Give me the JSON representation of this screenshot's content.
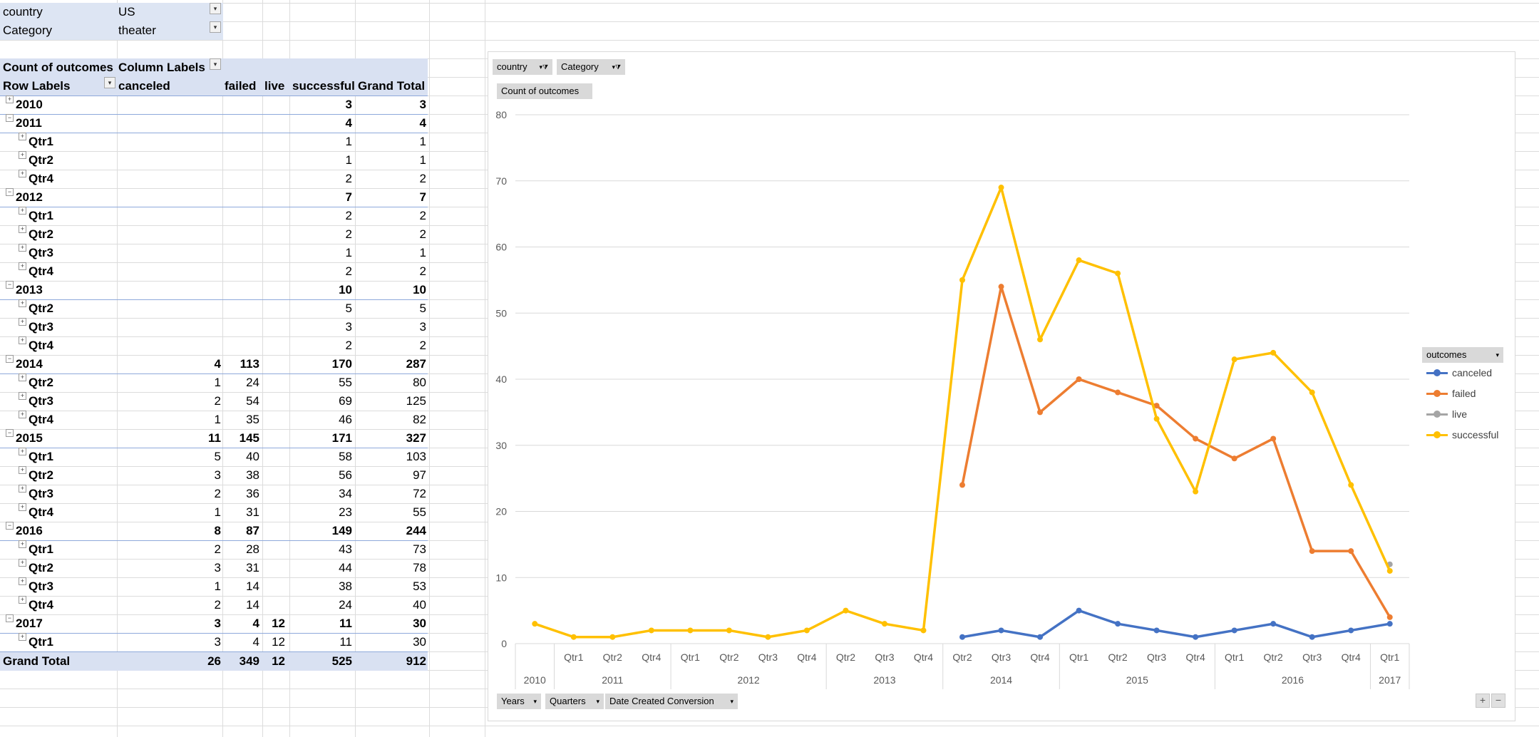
{
  "filters": {
    "country": {
      "label": "country",
      "value": "US"
    },
    "category": {
      "label": "Category",
      "value": "theater"
    }
  },
  "pivot": {
    "header1": {
      "measure": "Count of outcomes",
      "column_labels": "Column Labels"
    },
    "header2": {
      "row_labels": "Row Labels",
      "canceled": "canceled",
      "failed": "failed",
      "live": "live",
      "successful": "successful",
      "grand_total": "Grand Total"
    },
    "rows": [
      {
        "level": "year",
        "label": "2010",
        "expander": "+",
        "canceled": "",
        "failed": "",
        "live": "",
        "successful": "3",
        "total": "3"
      },
      {
        "level": "year",
        "label": "2011",
        "expander": "−",
        "canceled": "",
        "failed": "",
        "live": "",
        "successful": "4",
        "total": "4"
      },
      {
        "level": "qtr",
        "label": "Qtr1",
        "expander": "+",
        "canceled": "",
        "failed": "",
        "live": "",
        "successful": "1",
        "total": "1"
      },
      {
        "level": "qtr",
        "label": "Qtr2",
        "expander": "+",
        "canceled": "",
        "failed": "",
        "live": "",
        "successful": "1",
        "total": "1"
      },
      {
        "level": "qtr",
        "label": "Qtr4",
        "expander": "+",
        "canceled": "",
        "failed": "",
        "live": "",
        "successful": "2",
        "total": "2"
      },
      {
        "level": "year",
        "label": "2012",
        "expander": "−",
        "canceled": "",
        "failed": "",
        "live": "",
        "successful": "7",
        "total": "7"
      },
      {
        "level": "qtr",
        "label": "Qtr1",
        "expander": "+",
        "canceled": "",
        "failed": "",
        "live": "",
        "successful": "2",
        "total": "2"
      },
      {
        "level": "qtr",
        "label": "Qtr2",
        "expander": "+",
        "canceled": "",
        "failed": "",
        "live": "",
        "successful": "2",
        "total": "2"
      },
      {
        "level": "qtr",
        "label": "Qtr3",
        "expander": "+",
        "canceled": "",
        "failed": "",
        "live": "",
        "successful": "1",
        "total": "1"
      },
      {
        "level": "qtr",
        "label": "Qtr4",
        "expander": "+",
        "canceled": "",
        "failed": "",
        "live": "",
        "successful": "2",
        "total": "2"
      },
      {
        "level": "year",
        "label": "2013",
        "expander": "−",
        "canceled": "",
        "failed": "",
        "live": "",
        "successful": "10",
        "total": "10"
      },
      {
        "level": "qtr",
        "label": "Qtr2",
        "expander": "+",
        "canceled": "",
        "failed": "",
        "live": "",
        "successful": "5",
        "total": "5"
      },
      {
        "level": "qtr",
        "label": "Qtr3",
        "expander": "+",
        "canceled": "",
        "failed": "",
        "live": "",
        "successful": "3",
        "total": "3"
      },
      {
        "level": "qtr",
        "label": "Qtr4",
        "expander": "+",
        "canceled": "",
        "failed": "",
        "live": "",
        "successful": "2",
        "total": "2"
      },
      {
        "level": "year",
        "label": "2014",
        "expander": "−",
        "canceled": "4",
        "failed": "113",
        "live": "",
        "successful": "170",
        "total": "287"
      },
      {
        "level": "qtr",
        "label": "Qtr2",
        "expander": "+",
        "canceled": "1",
        "failed": "24",
        "live": "",
        "successful": "55",
        "total": "80"
      },
      {
        "level": "qtr",
        "label": "Qtr3",
        "expander": "+",
        "canceled": "2",
        "failed": "54",
        "live": "",
        "successful": "69",
        "total": "125"
      },
      {
        "level": "qtr",
        "label": "Qtr4",
        "expander": "+",
        "canceled": "1",
        "failed": "35",
        "live": "",
        "successful": "46",
        "total": "82"
      },
      {
        "level": "year",
        "label": "2015",
        "expander": "−",
        "canceled": "11",
        "failed": "145",
        "live": "",
        "successful": "171",
        "total": "327"
      },
      {
        "level": "qtr",
        "label": "Qtr1",
        "expander": "+",
        "canceled": "5",
        "failed": "40",
        "live": "",
        "successful": "58",
        "total": "103"
      },
      {
        "level": "qtr",
        "label": "Qtr2",
        "expander": "+",
        "canceled": "3",
        "failed": "38",
        "live": "",
        "successful": "56",
        "total": "97"
      },
      {
        "level": "qtr",
        "label": "Qtr3",
        "expander": "+",
        "canceled": "2",
        "failed": "36",
        "live": "",
        "successful": "34",
        "total": "72"
      },
      {
        "level": "qtr",
        "label": "Qtr4",
        "expander": "+",
        "canceled": "1",
        "failed": "31",
        "live": "",
        "successful": "23",
        "total": "55"
      },
      {
        "level": "year",
        "label": "2016",
        "expander": "−",
        "canceled": "8",
        "failed": "87",
        "live": "",
        "successful": "149",
        "total": "244"
      },
      {
        "level": "qtr",
        "label": "Qtr1",
        "expander": "+",
        "canceled": "2",
        "failed": "28",
        "live": "",
        "successful": "43",
        "total": "73"
      },
      {
        "level": "qtr",
        "label": "Qtr2",
        "expander": "+",
        "canceled": "3",
        "failed": "31",
        "live": "",
        "successful": "44",
        "total": "78"
      },
      {
        "level": "qtr",
        "label": "Qtr3",
        "expander": "+",
        "canceled": "1",
        "failed": "14",
        "live": "",
        "successful": "38",
        "total": "53"
      },
      {
        "level": "qtr",
        "label": "Qtr4",
        "expander": "+",
        "canceled": "2",
        "failed": "14",
        "live": "",
        "successful": "24",
        "total": "40"
      },
      {
        "level": "year",
        "label": "2017",
        "expander": "−",
        "canceled": "3",
        "failed": "4",
        "live": "12",
        "successful": "11",
        "total": "30"
      },
      {
        "level": "qtr",
        "label": "Qtr1",
        "expander": "+",
        "canceled": "3",
        "failed": "4",
        "live": "12",
        "successful": "11",
        "total": "30"
      }
    ],
    "grand_total": {
      "label": "Grand Total",
      "canceled": "26",
      "failed": "349",
      "live": "12",
      "successful": "525",
      "total": "912"
    }
  },
  "chart_buttons": {
    "country": "country",
    "category": "Category",
    "measure": "Count of outcomes",
    "years": "Years",
    "quarters": "Quarters",
    "date_field": "Date Created Conversion",
    "legend_title": "outcomes",
    "zoom_in": "+",
    "zoom_out": "−"
  },
  "chart_data": {
    "type": "line",
    "ylim": [
      0,
      80
    ],
    "yticks": [
      0,
      10,
      20,
      30,
      40,
      50,
      60,
      70,
      80
    ],
    "categories": [
      {
        "year": "2010",
        "qtr": ""
      },
      {
        "year": "2011",
        "qtr": "Qtr1"
      },
      {
        "year": "2011",
        "qtr": "Qtr2"
      },
      {
        "year": "2011",
        "qtr": "Qtr4"
      },
      {
        "year": "2012",
        "qtr": "Qtr1"
      },
      {
        "year": "2012",
        "qtr": "Qtr2"
      },
      {
        "year": "2012",
        "qtr": "Qtr3"
      },
      {
        "year": "2012",
        "qtr": "Qtr4"
      },
      {
        "year": "2013",
        "qtr": "Qtr2"
      },
      {
        "year": "2013",
        "qtr": "Qtr3"
      },
      {
        "year": "2013",
        "qtr": "Qtr4"
      },
      {
        "year": "2014",
        "qtr": "Qtr2"
      },
      {
        "year": "2014",
        "qtr": "Qtr3"
      },
      {
        "year": "2014",
        "qtr": "Qtr4"
      },
      {
        "year": "2015",
        "qtr": "Qtr1"
      },
      {
        "year": "2015",
        "qtr": "Qtr2"
      },
      {
        "year": "2015",
        "qtr": "Qtr3"
      },
      {
        "year": "2015",
        "qtr": "Qtr4"
      },
      {
        "year": "2016",
        "qtr": "Qtr1"
      },
      {
        "year": "2016",
        "qtr": "Qtr2"
      },
      {
        "year": "2016",
        "qtr": "Qtr3"
      },
      {
        "year": "2016",
        "qtr": "Qtr4"
      },
      {
        "year": "2017",
        "qtr": "Qtr1"
      }
    ],
    "year_groups": [
      {
        "year": "2010",
        "count": 1
      },
      {
        "year": "2011",
        "count": 3
      },
      {
        "year": "2012",
        "count": 4
      },
      {
        "year": "2013",
        "count": 3
      },
      {
        "year": "2014",
        "count": 3
      },
      {
        "year": "2015",
        "count": 4
      },
      {
        "year": "2016",
        "count": 4
      },
      {
        "year": "2017",
        "count": 1
      }
    ],
    "series": [
      {
        "name": "canceled",
        "color": "#4472c4",
        "values": [
          null,
          null,
          null,
          null,
          null,
          null,
          null,
          null,
          null,
          null,
          null,
          1,
          2,
          1,
          5,
          3,
          2,
          1,
          2,
          3,
          1,
          2,
          3
        ]
      },
      {
        "name": "failed",
        "color": "#ed7d31",
        "values": [
          null,
          null,
          null,
          null,
          null,
          null,
          null,
          null,
          null,
          null,
          null,
          24,
          54,
          35,
          40,
          38,
          36,
          31,
          28,
          31,
          14,
          14,
          4
        ]
      },
      {
        "name": "live",
        "color": "#a5a5a5",
        "values": [
          null,
          null,
          null,
          null,
          null,
          null,
          null,
          null,
          null,
          null,
          null,
          null,
          null,
          null,
          null,
          null,
          null,
          null,
          null,
          null,
          null,
          null,
          12
        ]
      },
      {
        "name": "successful",
        "color": "#ffc000",
        "values": [
          3,
          1,
          1,
          2,
          2,
          2,
          1,
          2,
          5,
          3,
          2,
          55,
          69,
          46,
          58,
          56,
          34,
          23,
          43,
          44,
          38,
          24,
          11
        ]
      }
    ],
    "legend_position": "right"
  }
}
